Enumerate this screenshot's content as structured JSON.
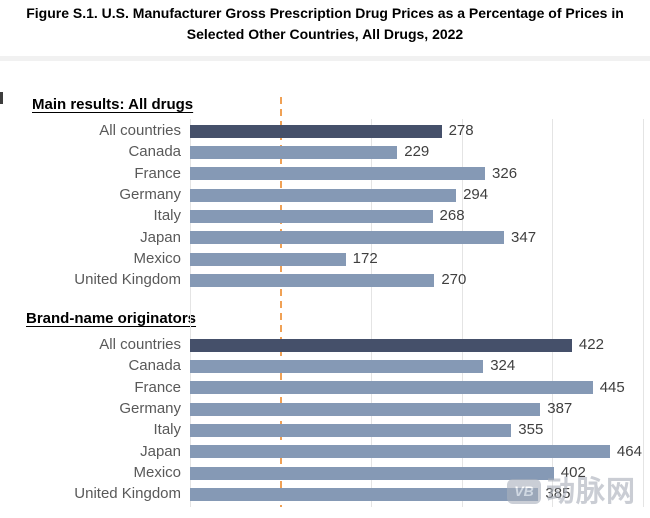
{
  "title_lines": [
    "Figure S.1. U.S. Manufacturer Gross Prescription Drug Prices as a Percentage of Prices in",
    "Selected Other Countries, All Drugs, 2022"
  ],
  "chart_data": {
    "type": "bar",
    "orientation": "horizontal",
    "title": "Figure S.1. U.S. Manufacturer Gross Prescription Drug Prices as a Percentage of Prices in Selected Other Countries, All Drugs, 2022",
    "unit": "percent of other-country prices",
    "xlim": [
      0,
      500
    ],
    "gridline_interval": 100,
    "tick_labels_visible": false,
    "reference_line": {
      "x": 100,
      "style": "dashed",
      "color": "#F0A155"
    },
    "categories": [
      "All countries",
      "Canada",
      "France",
      "Germany",
      "Italy",
      "Japan",
      "Mexico",
      "United Kingdom"
    ],
    "groups": [
      {
        "label": "Main results: All drugs",
        "values": [
          278,
          229,
          326,
          294,
          268,
          347,
          172,
          270
        ]
      },
      {
        "label": "Brand-name originators",
        "values": [
          422,
          324,
          445,
          387,
          355,
          464,
          402,
          385
        ]
      }
    ],
    "highlight_category": "All countries",
    "colors": {
      "highlight_bar": "#45506A",
      "bar": "#8599B5",
      "grid": "#E4E4E4",
      "category_label": "#595959",
      "value_label": "#3F3F3F",
      "title": "#000000"
    },
    "legend": "none"
  },
  "watermark": {
    "logo_text": "VB",
    "text": "动脉网"
  }
}
